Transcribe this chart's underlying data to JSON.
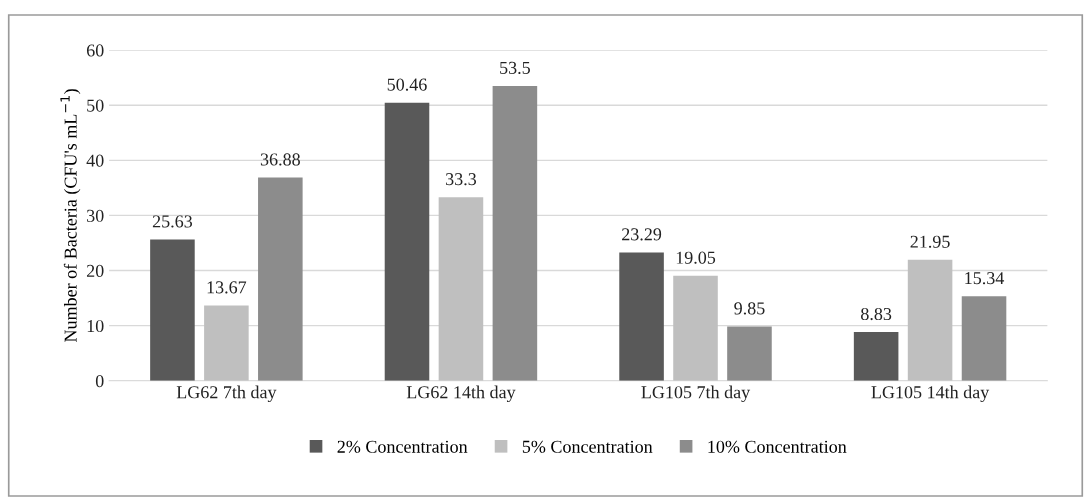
{
  "chart_data": {
    "type": "bar",
    "ylabel": "Number of Bacteria (CFU's mL$^{−1}$)",
    "categories": [
      "LG62 7th day",
      "LG62 14th day",
      "LG105 7th day",
      "LG105 14th day"
    ],
    "series": [
      {
        "name": "2% Concentration",
        "color": "#595959",
        "values": [
          25.63,
          50.46,
          23.29,
          8.83
        ]
      },
      {
        "name": "5% Concentration",
        "color": "#bfbfbf",
        "values": [
          13.67,
          33.3,
          19.05,
          21.95
        ]
      },
      {
        "name": "10% Concentration",
        "color": "#8c8c8c",
        "values": [
          36.88,
          53.5,
          9.85,
          15.34
        ]
      }
    ],
    "ylim": [
      0,
      60
    ],
    "yticks": [
      0,
      10,
      20,
      30,
      40,
      50,
      60
    ],
    "grid": "y",
    "legend": "bottom",
    "data_labels": true
  }
}
